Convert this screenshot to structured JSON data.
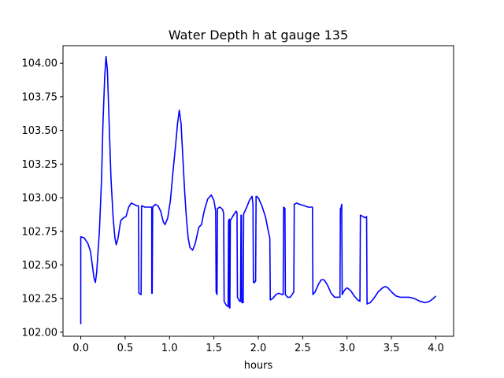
{
  "chart_data": {
    "type": "line",
    "title": "Water Depth h at gauge 135",
    "xlabel": "hours",
    "ylabel": "",
    "xlim": [
      -0.2,
      4.2
    ],
    "ylim": [
      101.97,
      104.13
    ],
    "xticks": [
      0.0,
      0.5,
      1.0,
      1.5,
      2.0,
      2.5,
      3.0,
      3.5,
      4.0
    ],
    "xtick_labels": [
      "0.0",
      "0.5",
      "1.0",
      "1.5",
      "2.0",
      "2.5",
      "3.0",
      "3.5",
      "4.0"
    ],
    "yticks": [
      102.0,
      102.25,
      102.5,
      102.75,
      103.0,
      103.25,
      103.5,
      103.75,
      104.0
    ],
    "ytick_labels": [
      "102.00",
      "102.25",
      "102.50",
      "102.75",
      "103.00",
      "103.25",
      "103.50",
      "103.75",
      "104.00"
    ],
    "grid": false,
    "legend": "none",
    "series": [
      {
        "color": "#0000ff",
        "points": [
          [
            0.0,
            102.06
          ],
          [
            0.0,
            102.71
          ],
          [
            0.04,
            102.7
          ],
          [
            0.08,
            102.66
          ],
          [
            0.11,
            102.6
          ],
          [
            0.13,
            102.5
          ],
          [
            0.15,
            102.4
          ],
          [
            0.165,
            102.37
          ],
          [
            0.18,
            102.45
          ],
          [
            0.21,
            102.75
          ],
          [
            0.235,
            103.15
          ],
          [
            0.25,
            103.55
          ],
          [
            0.27,
            103.9
          ],
          [
            0.285,
            104.05
          ],
          [
            0.3,
            103.95
          ],
          [
            0.32,
            103.55
          ],
          [
            0.34,
            103.15
          ],
          [
            0.365,
            102.85
          ],
          [
            0.385,
            102.7
          ],
          [
            0.4,
            102.65
          ],
          [
            0.42,
            102.7
          ],
          [
            0.45,
            102.83
          ],
          [
            0.48,
            102.85
          ],
          [
            0.51,
            102.86
          ],
          [
            0.54,
            102.93
          ],
          [
            0.57,
            102.96
          ],
          [
            0.6,
            102.95
          ],
          [
            0.63,
            102.94
          ],
          [
            0.65,
            102.94
          ],
          [
            0.655,
            102.29
          ],
          [
            0.68,
            102.28
          ],
          [
            0.685,
            102.94
          ],
          [
            0.72,
            102.93
          ],
          [
            0.76,
            102.93
          ],
          [
            0.8,
            102.93
          ],
          [
            0.8,
            102.29
          ],
          [
            0.805,
            102.29
          ],
          [
            0.81,
            102.93
          ],
          [
            0.84,
            102.95
          ],
          [
            0.87,
            102.94
          ],
          [
            0.9,
            102.9
          ],
          [
            0.93,
            102.82
          ],
          [
            0.95,
            102.8
          ],
          [
            0.98,
            102.85
          ],
          [
            1.01,
            102.98
          ],
          [
            1.04,
            103.2
          ],
          [
            1.07,
            103.4
          ],
          [
            1.09,
            103.55
          ],
          [
            1.11,
            103.65
          ],
          [
            1.13,
            103.55
          ],
          [
            1.15,
            103.3
          ],
          [
            1.17,
            103.05
          ],
          [
            1.19,
            102.85
          ],
          [
            1.21,
            102.7
          ],
          [
            1.23,
            102.63
          ],
          [
            1.26,
            102.61
          ],
          [
            1.29,
            102.66
          ],
          [
            1.33,
            102.78
          ],
          [
            1.36,
            102.8
          ],
          [
            1.39,
            102.9
          ],
          [
            1.43,
            102.99
          ],
          [
            1.47,
            103.02
          ],
          [
            1.5,
            102.98
          ],
          [
            1.52,
            102.9
          ],
          [
            1.525,
            102.3
          ],
          [
            1.535,
            102.28
          ],
          [
            1.54,
            102.92
          ],
          [
            1.57,
            102.93
          ],
          [
            1.6,
            102.91
          ],
          [
            1.61,
            102.88
          ],
          [
            1.615,
            102.23
          ],
          [
            1.64,
            102.2
          ],
          [
            1.66,
            102.19
          ],
          [
            1.665,
            102.83
          ],
          [
            1.675,
            102.84
          ],
          [
            1.675,
            102.18
          ],
          [
            1.68,
            102.18
          ],
          [
            1.685,
            102.83
          ],
          [
            1.72,
            102.87
          ],
          [
            1.75,
            102.9
          ],
          [
            1.76,
            102.89
          ],
          [
            1.765,
            102.26
          ],
          [
            1.79,
            102.23
          ],
          [
            1.8,
            102.23
          ],
          [
            1.805,
            102.87
          ],
          [
            1.81,
            102.87
          ],
          [
            1.815,
            102.22
          ],
          [
            1.83,
            102.22
          ],
          [
            1.835,
            102.88
          ],
          [
            1.87,
            102.93
          ],
          [
            1.9,
            102.98
          ],
          [
            1.93,
            103.01
          ],
          [
            1.94,
            102.95
          ],
          [
            1.945,
            102.37
          ],
          [
            1.96,
            102.37
          ],
          [
            1.965,
            102.38
          ],
          [
            1.97,
            102.38
          ],
          [
            1.975,
            103.01
          ],
          [
            2.0,
            103.0
          ],
          [
            2.04,
            102.94
          ],
          [
            2.08,
            102.86
          ],
          [
            2.11,
            102.76
          ],
          [
            2.13,
            102.7
          ],
          [
            2.135,
            102.24
          ],
          [
            2.16,
            102.25
          ],
          [
            2.2,
            102.28
          ],
          [
            2.23,
            102.29
          ],
          [
            2.27,
            102.28
          ],
          [
            2.28,
            102.28
          ],
          [
            2.285,
            102.93
          ],
          [
            2.3,
            102.92
          ],
          [
            2.305,
            102.28
          ],
          [
            2.33,
            102.26
          ],
          [
            2.36,
            102.26
          ],
          [
            2.4,
            102.3
          ],
          [
            2.405,
            102.95
          ],
          [
            2.43,
            102.96
          ],
          [
            2.47,
            102.95
          ],
          [
            2.52,
            102.94
          ],
          [
            2.56,
            102.93
          ],
          [
            2.61,
            102.93
          ],
          [
            2.615,
            102.28
          ],
          [
            2.64,
            102.3
          ],
          [
            2.68,
            102.36
          ],
          [
            2.71,
            102.39
          ],
          [
            2.74,
            102.39
          ],
          [
            2.78,
            102.35
          ],
          [
            2.82,
            102.29
          ],
          [
            2.86,
            102.26
          ],
          [
            2.92,
            102.26
          ],
          [
            2.925,
            102.92
          ],
          [
            2.93,
            102.92
          ],
          [
            2.94,
            102.95
          ],
          [
            2.945,
            102.28
          ],
          [
            2.96,
            102.3
          ],
          [
            2.98,
            102.32
          ],
          [
            3.0,
            102.33
          ],
          [
            3.04,
            102.31
          ],
          [
            3.08,
            102.27
          ],
          [
            3.12,
            102.24
          ],
          [
            3.145,
            102.23
          ],
          [
            3.15,
            102.87
          ],
          [
            3.18,
            102.86
          ],
          [
            3.2,
            102.85
          ],
          [
            3.22,
            102.86
          ],
          [
            3.225,
            102.21
          ],
          [
            3.26,
            102.22
          ],
          [
            3.3,
            102.25
          ],
          [
            3.35,
            102.3
          ],
          [
            3.4,
            102.33
          ],
          [
            3.43,
            102.34
          ],
          [
            3.46,
            102.33
          ],
          [
            3.5,
            102.3
          ],
          [
            3.55,
            102.27
          ],
          [
            3.6,
            102.26
          ],
          [
            3.66,
            102.26
          ],
          [
            3.7,
            102.26
          ],
          [
            3.76,
            102.25
          ],
          [
            3.82,
            102.23
          ],
          [
            3.88,
            102.22
          ],
          [
            3.93,
            102.23
          ],
          [
            3.97,
            102.25
          ],
          [
            4.0,
            102.27
          ]
        ]
      }
    ]
  }
}
